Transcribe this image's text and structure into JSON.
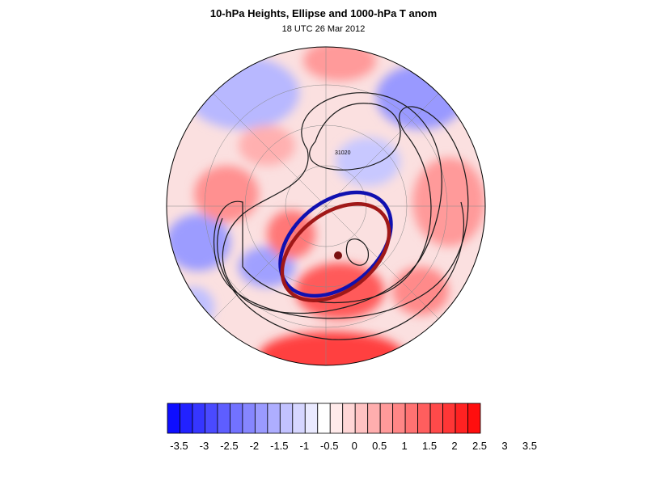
{
  "title": "10-hPa Heights, Ellipse and 1000-hPa T anom",
  "subtitle": "18 UTC 26 Mar 2012",
  "contour_label": "31020",
  "colorbar": {
    "colors": [
      "#0e0eff",
      "#2222ff",
      "#3636ff",
      "#4a4aff",
      "#5e5eff",
      "#7272ff",
      "#8686ff",
      "#9a9aff",
      "#aeaeff",
      "#c2c2ff",
      "#d6d6ff",
      "#eaeaff",
      "#ffffff",
      "#ffeaea",
      "#ffd6d6",
      "#ffc2c2",
      "#ffaeae",
      "#ff9a9a",
      "#ff8686",
      "#ff7272",
      "#ff5e5e",
      "#ff4a4a",
      "#ff3636",
      "#ff2222",
      "#ff0e0e"
    ],
    "tick_labels": [
      "-3.5",
      "-3",
      "-2.5",
      "-2",
      "-1.5",
      "-1",
      "-0.5",
      "0",
      "0.5",
      "1",
      "1.5",
      "2",
      "2.5",
      "3",
      "3.5"
    ]
  },
  "ellipse_colors": {
    "ellipse_a": "#1010b0",
    "ellipse_b": "#a01818"
  }
}
